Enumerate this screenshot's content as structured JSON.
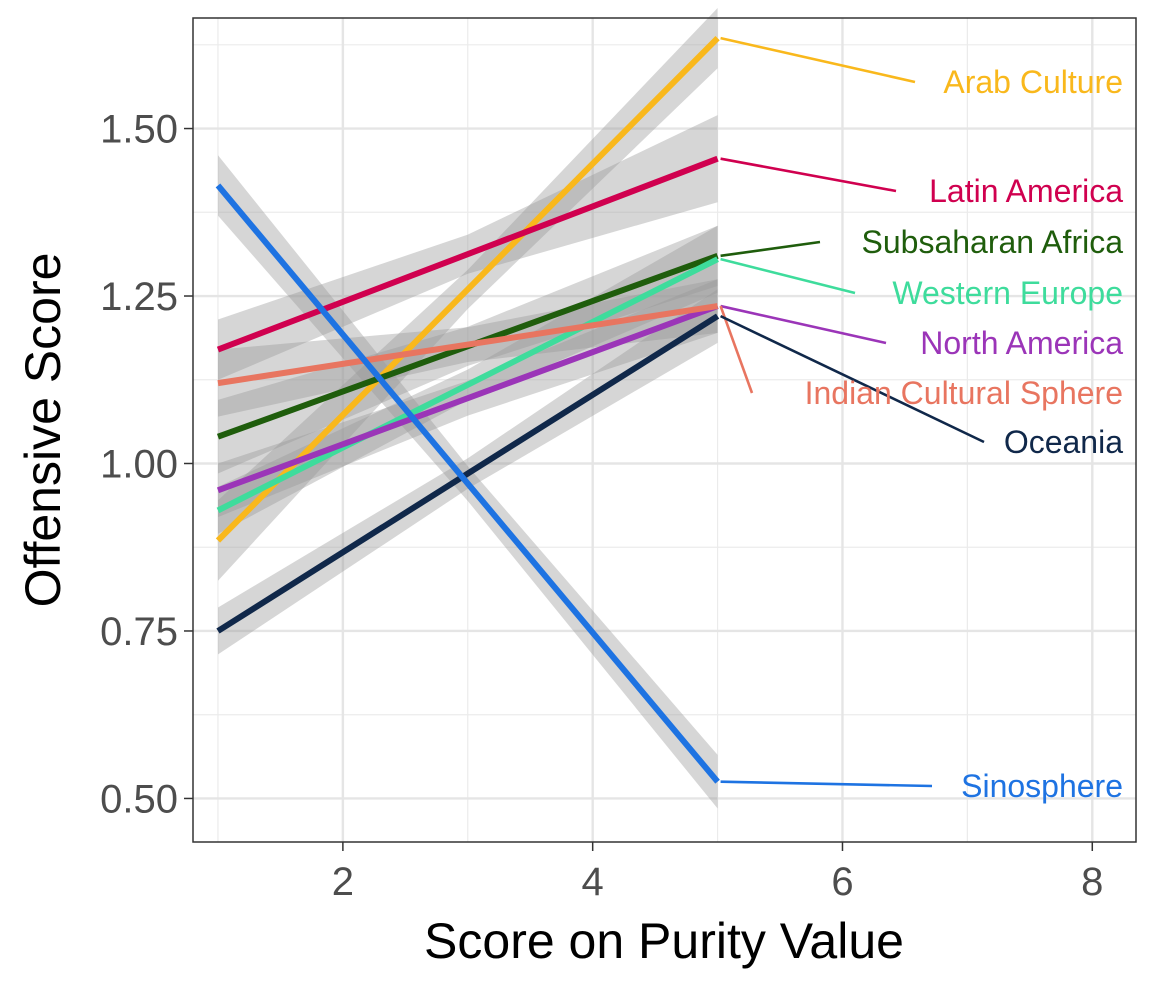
{
  "chart_data": {
    "type": "line",
    "title": "",
    "xlabel": "Score on Purity Value",
    "ylabel": "Offensive Score",
    "xlim": [
      0.8,
      8.35
    ],
    "ylim": [
      0.435,
      1.665
    ],
    "xticks": [
      2,
      4,
      6,
      8
    ],
    "xtick_labels": [
      "2",
      "4",
      "6",
      "8"
    ],
    "yticks": [
      0.5,
      0.75,
      1.0,
      1.25,
      1.5
    ],
    "ytick_labels": [
      "0.50",
      "0.75",
      "1.00",
      "1.25",
      "1.50"
    ],
    "grid": true,
    "confidence_band": true,
    "legend": "direct labels at right",
    "series": [
      {
        "name": "Arab Culture",
        "color": "#F9B81C",
        "x": [
          1,
          5
        ],
        "y": [
          0.885,
          1.635
        ],
        "band": [
          0.06,
          0.045
        ]
      },
      {
        "name": "Latin America",
        "color": "#D0004F",
        "x": [
          1,
          5
        ],
        "y": [
          1.17,
          1.455
        ],
        "band": [
          0.045,
          0.065
        ]
      },
      {
        "name": "Subsaharan Africa",
        "color": "#1F5D0C",
        "x": [
          1,
          5
        ],
        "y": [
          1.04,
          1.31
        ],
        "band": [
          0.055,
          0.045
        ]
      },
      {
        "name": "Western Europe",
        "color": "#3EDC9C",
        "x": [
          1,
          5
        ],
        "y": [
          0.93,
          1.305
        ],
        "band": [
          0.035,
          0.05
        ]
      },
      {
        "name": "North America",
        "color": "#9B35B8",
        "x": [
          1,
          5
        ],
        "y": [
          0.96,
          1.235
        ],
        "band": [
          0.04,
          0.04
        ]
      },
      {
        "name": "Indian Cultural Sphere",
        "color": "#E87560",
        "x": [
          1,
          5
        ],
        "y": [
          1.12,
          1.235
        ],
        "band": [
          0.05,
          0.04
        ]
      },
      {
        "name": "Oceania",
        "color": "#10284A",
        "x": [
          1,
          5
        ],
        "y": [
          0.75,
          1.22
        ],
        "band": [
          0.035,
          0.04
        ]
      },
      {
        "name": "Sinosphere",
        "color": "#1E73E2",
        "x": [
          1,
          5
        ],
        "y": [
          1.415,
          0.525
        ],
        "band": [
          0.045,
          0.04
        ]
      }
    ]
  }
}
